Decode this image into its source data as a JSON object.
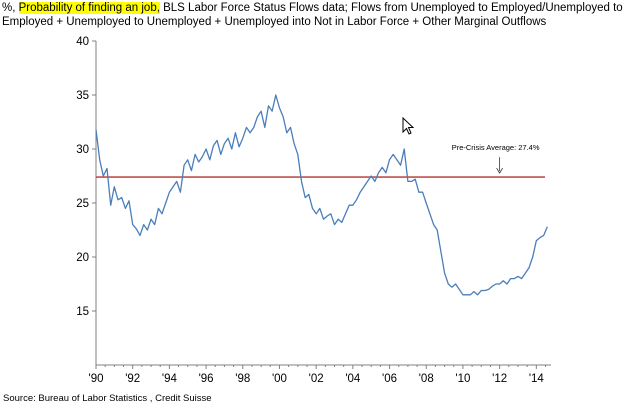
{
  "header": {
    "line1_prefix": "%, ",
    "line1_highlight": "Probability of finding an job,",
    "line1_rest": " BLS Labor Force Status Flows data; Flows from Unemployed to  Employed/Unemployed to",
    "line2": "Employed + Unemployed to Unemployed + Unemployed into Not in Labor Force + Other Marginal Outflows"
  },
  "source": "Source: Bureau of Labor Statistics , Credit Suisse",
  "colors": {
    "series": "#4a7ebb",
    "average_line": "#c0504d",
    "highlight": "#ffff00",
    "axis": "#808080"
  },
  "icons": {
    "cursor": "mouse-pointer-icon"
  },
  "chart_data": {
    "type": "line",
    "x_tick_labels": [
      "'90",
      "'92",
      "'94",
      "'96",
      "'98",
      "'00",
      "'02",
      "'04",
      "'06",
      "'08",
      "'10",
      "'12",
      "'14"
    ],
    "y_tick_labels": [
      "15",
      "20",
      "25",
      "30",
      "35",
      "40"
    ],
    "xlim": [
      1990,
      2014.8
    ],
    "ylim": [
      10,
      40
    ],
    "grid": false,
    "reference_line": {
      "value": 27.4,
      "label": "Pre-Crisis Average: 27.4%"
    },
    "series": [
      {
        "x": [
          1990.0,
          1990.2,
          1990.4,
          1990.6,
          1990.8,
          1991.0,
          1991.2,
          1991.4,
          1991.6,
          1991.8,
          1992.0,
          1992.2,
          1992.4,
          1992.6,
          1992.8,
          1993.0,
          1993.2,
          1993.4,
          1993.6,
          1993.8,
          1994.0,
          1994.2,
          1994.4,
          1994.6,
          1994.8,
          1995.0,
          1995.2,
          1995.4,
          1995.6,
          1995.8,
          1996.0,
          1996.2,
          1996.4,
          1996.6,
          1996.8,
          1997.0,
          1997.2,
          1997.4,
          1997.6,
          1997.8,
          1998.0,
          1998.2,
          1998.4,
          1998.6,
          1998.8,
          1999.0,
          1999.2,
          1999.4,
          1999.6,
          1999.8,
          2000.0,
          2000.2,
          2000.4,
          2000.6,
          2000.8,
          2001.0,
          2001.2,
          2001.4,
          2001.6,
          2001.8,
          2002.0,
          2002.2,
          2002.4,
          2002.6,
          2002.8,
          2003.0,
          2003.2,
          2003.4,
          2003.6,
          2003.8,
          2004.0,
          2004.2,
          2004.4,
          2004.6,
          2004.8,
          2005.0,
          2005.2,
          2005.4,
          2005.6,
          2005.8,
          2006.0,
          2006.2,
          2006.4,
          2006.6,
          2006.8,
          2007.0,
          2007.2,
          2007.4,
          2007.6,
          2007.8,
          2008.0,
          2008.2,
          2008.4,
          2008.6,
          2008.8,
          2009.0,
          2009.2,
          2009.4,
          2009.6,
          2009.8,
          2010.0,
          2010.2,
          2010.4,
          2010.6,
          2010.8,
          2011.0,
          2011.2,
          2011.4,
          2011.6,
          2011.8,
          2012.0,
          2012.2,
          2012.4,
          2012.6,
          2012.8,
          2013.0,
          2013.2,
          2013.4,
          2013.6,
          2013.8,
          2014.0,
          2014.2,
          2014.4,
          2014.6
        ],
        "values": [
          31.8,
          29.0,
          27.5,
          28.2,
          24.8,
          26.5,
          25.3,
          25.5,
          24.5,
          25.2,
          23.0,
          22.6,
          22.0,
          23.0,
          22.5,
          23.5,
          23.0,
          24.5,
          24.0,
          25.0,
          26.0,
          26.5,
          27.0,
          26.0,
          28.5,
          29.0,
          28.0,
          29.5,
          28.8,
          29.3,
          30.0,
          29.0,
          30.3,
          30.8,
          29.5,
          30.5,
          31.0,
          30.0,
          31.5,
          30.2,
          31.0,
          32.0,
          31.5,
          32.0,
          33.0,
          33.5,
          32.0,
          34.0,
          33.5,
          35.0,
          33.8,
          33.0,
          31.5,
          32.0,
          30.5,
          29.5,
          27.0,
          25.5,
          25.8,
          24.5,
          24.0,
          24.5,
          23.5,
          23.8,
          24.0,
          23.0,
          23.5,
          23.2,
          24.0,
          24.8,
          24.8,
          25.3,
          26.0,
          26.5,
          27.0,
          27.5,
          27.0,
          27.8,
          28.3,
          27.8,
          29.0,
          29.5,
          29.0,
          28.5,
          30.0,
          27.0,
          27.0,
          27.2,
          26.0,
          26.0,
          25.0,
          24.0,
          23.0,
          22.5,
          20.5,
          18.5,
          17.5,
          17.2,
          17.5,
          17.0,
          16.5,
          16.5,
          16.5,
          16.8,
          16.5,
          16.9,
          16.9,
          17.0,
          17.3,
          17.5,
          17.5,
          17.8,
          17.5,
          18.0,
          18.0,
          18.2,
          18.0,
          18.5,
          19.0,
          20.0,
          21.5,
          21.8,
          22.0,
          22.8
        ]
      }
    ]
  }
}
